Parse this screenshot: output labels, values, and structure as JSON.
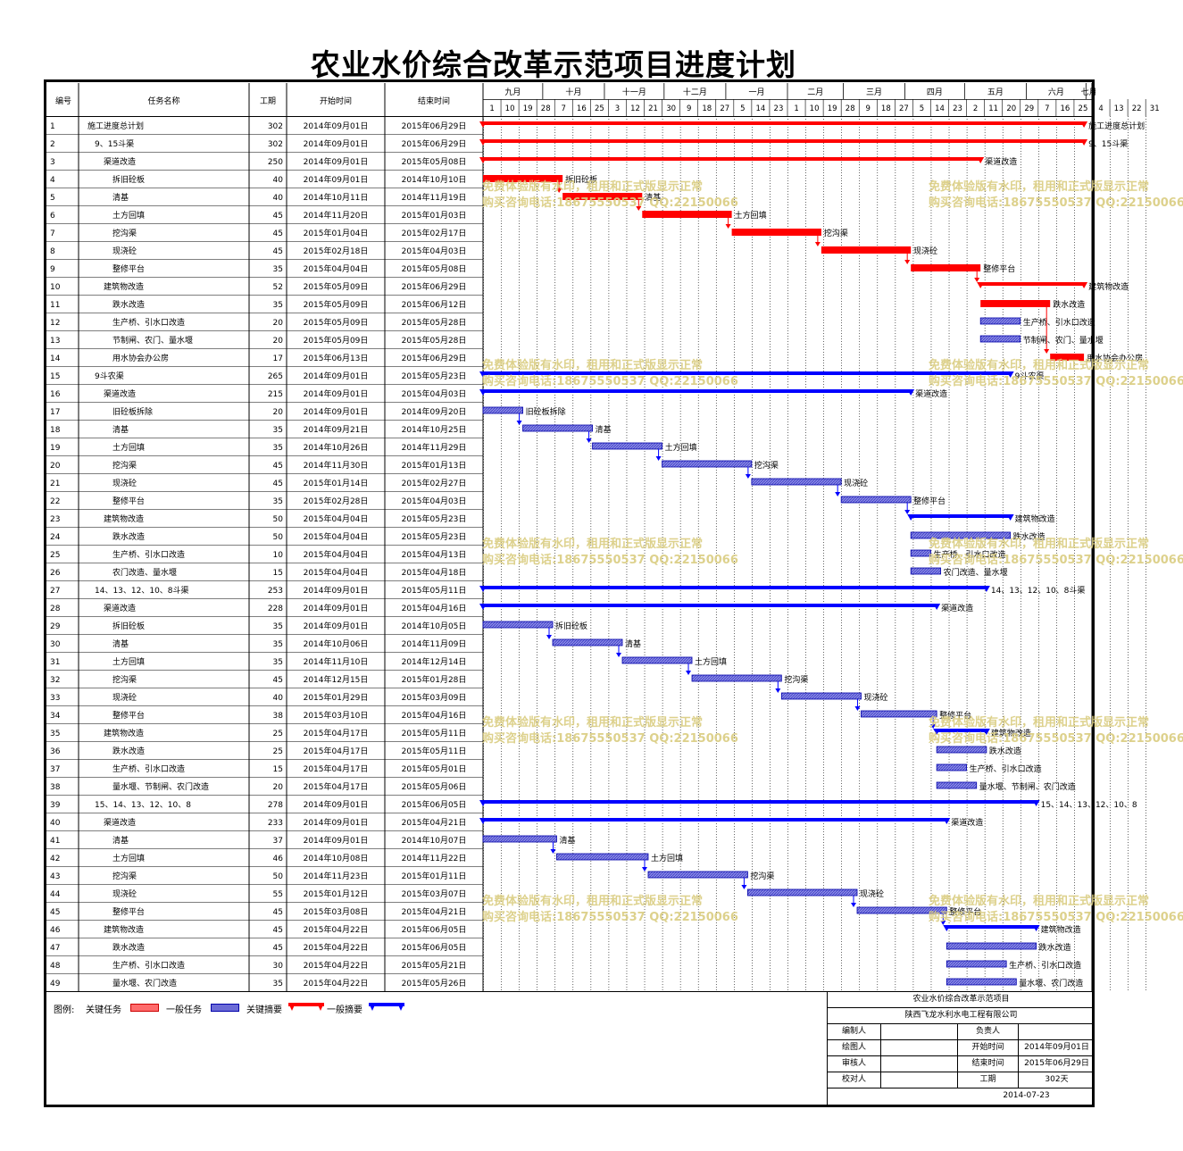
{
  "title": "农业水价综合改革示范项目进度计划",
  "headers": {
    "id": "编号",
    "name": "任务名称",
    "duration": "工期",
    "start": "开始时间",
    "end": "结束时间"
  },
  "timescale": {
    "months": [
      "九月",
      "十月",
      "十一月",
      "十二月",
      "一月",
      "二月",
      "三月",
      "四月",
      "五月",
      "六月",
      "七月"
    ],
    "days": [
      "1",
      "10",
      "19",
      "28",
      "7",
      "16",
      "25",
      "3",
      "12",
      "21",
      "30",
      "9",
      "18",
      "27",
      "5",
      "14",
      "23",
      "1",
      "10",
      "19",
      "28",
      "9",
      "18",
      "27",
      "5",
      "14",
      "23",
      "2",
      "11",
      "20",
      "29",
      "7",
      "16",
      "25",
      "4",
      "13",
      "22",
      "31"
    ],
    "range_start": "2014-09-01",
    "range_end": "2015-07-04"
  },
  "chart_data": {
    "type": "gantt",
    "title": "农业水价综合改革示范项目进度计划",
    "tasks": [
      {
        "id": 1,
        "name": "施工进度总计划",
        "level": 0,
        "duration": 302,
        "start_text": "2014年09月01日",
        "end_text": "2015年06月29日",
        "start": "2014-09-01",
        "end": "2015-06-29",
        "kind": "critical_summary",
        "label": "施工进度总计划"
      },
      {
        "id": 2,
        "name": "9、15斗渠",
        "level": 1,
        "duration": 302,
        "start_text": "2014年09月01日",
        "end_text": "2015年06月29日",
        "start": "2014-09-01",
        "end": "2015-06-29",
        "kind": "critical_summary",
        "label": "9、15斗渠"
      },
      {
        "id": 3,
        "name": "渠道改造",
        "level": 2,
        "duration": 250,
        "start_text": "2014年09月01日",
        "end_text": "2015年05月08日",
        "start": "2014-09-01",
        "end": "2015-05-08",
        "kind": "critical_summary",
        "label": "渠道改造"
      },
      {
        "id": 4,
        "name": "拆旧砼板",
        "level": 3,
        "duration": 40,
        "start_text": "2014年09月01日",
        "end_text": "2014年10月10日",
        "start": "2014-09-01",
        "end": "2014-10-10",
        "kind": "critical",
        "label": "拆旧砼板"
      },
      {
        "id": 5,
        "name": "清基",
        "level": 3,
        "duration": 40,
        "start_text": "2014年10月11日",
        "end_text": "2014年11月19日",
        "start": "2014-10-11",
        "end": "2014-11-19",
        "kind": "critical",
        "label": "清基"
      },
      {
        "id": 6,
        "name": "土方回填",
        "level": 3,
        "duration": 45,
        "start_text": "2014年11月20日",
        "end_text": "2015年01月03日",
        "start": "2014-11-20",
        "end": "2015-01-03",
        "kind": "critical",
        "label": "土方回填"
      },
      {
        "id": 7,
        "name": "挖沟渠",
        "level": 3,
        "duration": 45,
        "start_text": "2015年01月04日",
        "end_text": "2015年02月17日",
        "start": "2015-01-04",
        "end": "2015-02-17",
        "kind": "critical",
        "label": "挖沟渠"
      },
      {
        "id": 8,
        "name": "现浇砼",
        "level": 3,
        "duration": 45,
        "start_text": "2015年02月18日",
        "end_text": "2015年04月03日",
        "start": "2015-02-18",
        "end": "2015-04-03",
        "kind": "critical",
        "label": "现浇砼"
      },
      {
        "id": 9,
        "name": "整修平台",
        "level": 3,
        "duration": 35,
        "start_text": "2015年04月04日",
        "end_text": "2015年05月08日",
        "start": "2015-04-04",
        "end": "2015-05-08",
        "kind": "critical",
        "label": "整修平台"
      },
      {
        "id": 10,
        "name": "建筑物改造",
        "level": 2,
        "duration": 52,
        "start_text": "2015年05月09日",
        "end_text": "2015年06月29日",
        "start": "2015-05-09",
        "end": "2015-06-29",
        "kind": "critical_summary",
        "label": "建筑物改造"
      },
      {
        "id": 11,
        "name": "跌水改造",
        "level": 3,
        "duration": 35,
        "start_text": "2015年05月09日",
        "end_text": "2015年06月12日",
        "start": "2015-05-09",
        "end": "2015-06-12",
        "kind": "critical",
        "label": "跌水改造"
      },
      {
        "id": 12,
        "name": "生产桥、引水口改造",
        "level": 3,
        "duration": 20,
        "start_text": "2015年05月09日",
        "end_text": "2015年05月28日",
        "start": "2015-05-09",
        "end": "2015-05-28",
        "kind": "normal",
        "label": "生产桥、引水口改造"
      },
      {
        "id": 13,
        "name": "节制闸、农门、量水堰",
        "level": 3,
        "duration": 20,
        "start_text": "2015年05月09日",
        "end_text": "2015年05月28日",
        "start": "2015-05-09",
        "end": "2015-05-28",
        "kind": "normal",
        "label": "节制闸、农门、量水堰"
      },
      {
        "id": 14,
        "name": "用水协会办公房",
        "level": 3,
        "duration": 17,
        "start_text": "2015年06月13日",
        "end_text": "2015年06月29日",
        "start": "2015-06-13",
        "end": "2015-06-29",
        "kind": "critical",
        "label": "用水协会办公房"
      },
      {
        "id": 15,
        "name": "9斗农渠",
        "level": 1,
        "duration": 265,
        "start_text": "2014年09月01日",
        "end_text": "2015年05月23日",
        "start": "2014-09-01",
        "end": "2015-05-23",
        "kind": "summary",
        "label": "9斗农渠"
      },
      {
        "id": 16,
        "name": "渠道改造",
        "level": 2,
        "duration": 215,
        "start_text": "2014年09月01日",
        "end_text": "2015年04月03日",
        "start": "2014-09-01",
        "end": "2015-04-03",
        "kind": "summary",
        "label": "渠道改造"
      },
      {
        "id": 17,
        "name": "旧砼板拆除",
        "level": 3,
        "duration": 20,
        "start_text": "2014年09月01日",
        "end_text": "2014年09月20日",
        "start": "2014-09-01",
        "end": "2014-09-20",
        "kind": "normal",
        "label": "旧砼板拆除"
      },
      {
        "id": 18,
        "name": "清基",
        "level": 3,
        "duration": 35,
        "start_text": "2014年09月21日",
        "end_text": "2014年10月25日",
        "start": "2014-09-21",
        "end": "2014-10-25",
        "kind": "normal",
        "label": "清基"
      },
      {
        "id": 19,
        "name": "土方回填",
        "level": 3,
        "duration": 35,
        "start_text": "2014年10月26日",
        "end_text": "2014年11月29日",
        "start": "2014-10-26",
        "end": "2014-11-29",
        "kind": "normal",
        "label": "土方回填"
      },
      {
        "id": 20,
        "name": "挖沟渠",
        "level": 3,
        "duration": 45,
        "start_text": "2014年11月30日",
        "end_text": "2015年01月13日",
        "start": "2014-11-30",
        "end": "2015-01-13",
        "kind": "normal",
        "label": "挖沟渠"
      },
      {
        "id": 21,
        "name": "现浇砼",
        "level": 3,
        "duration": 45,
        "start_text": "2015年01月14日",
        "end_text": "2015年02月27日",
        "start": "2015-01-14",
        "end": "2015-02-27",
        "kind": "normal",
        "label": "现浇砼"
      },
      {
        "id": 22,
        "name": "整修平台",
        "level": 3,
        "duration": 35,
        "start_text": "2015年02月28日",
        "end_text": "2015年04月03日",
        "start": "2015-02-28",
        "end": "2015-04-03",
        "kind": "normal",
        "label": "整修平台"
      },
      {
        "id": 23,
        "name": "建筑物改造",
        "level": 2,
        "duration": 50,
        "start_text": "2015年04月04日",
        "end_text": "2015年05月23日",
        "start": "2015-04-04",
        "end": "2015-05-23",
        "kind": "summary",
        "label": "建筑物改造"
      },
      {
        "id": 24,
        "name": "跌水改造",
        "level": 3,
        "duration": 50,
        "start_text": "2015年04月04日",
        "end_text": "2015年05月23日",
        "start": "2015-04-04",
        "end": "2015-05-23",
        "kind": "normal",
        "label": "跌水改造"
      },
      {
        "id": 25,
        "name": "生产桥、引水口改造",
        "level": 3,
        "duration": 10,
        "start_text": "2015年04月04日",
        "end_text": "2015年04月13日",
        "start": "2015-04-04",
        "end": "2015-04-13",
        "kind": "normal",
        "label": "生产桥、引水口改造"
      },
      {
        "id": 26,
        "name": "农门改造、量水堰",
        "level": 3,
        "duration": 15,
        "start_text": "2015年04月04日",
        "end_text": "2015年04月18日",
        "start": "2015-04-04",
        "end": "2015-04-18",
        "kind": "normal",
        "label": "农门改造、量水堰"
      },
      {
        "id": 27,
        "name": "14、13、12、10、8斗渠",
        "level": 1,
        "duration": 253,
        "start_text": "2014年09月01日",
        "end_text": "2015年05月11日",
        "start": "2014-09-01",
        "end": "2015-05-11",
        "kind": "summary",
        "label": "14、13、12、10、8斗渠"
      },
      {
        "id": 28,
        "name": "渠道改造",
        "level": 2,
        "duration": 228,
        "start_text": "2014年09月01日",
        "end_text": "2015年04月16日",
        "start": "2014-09-01",
        "end": "2015-04-16",
        "kind": "summary",
        "label": "渠道改造"
      },
      {
        "id": 29,
        "name": "拆旧砼板",
        "level": 3,
        "duration": 35,
        "start_text": "2014年09月01日",
        "end_text": "2014年10月05日",
        "start": "2014-09-01",
        "end": "2014-10-05",
        "kind": "normal",
        "label": "拆旧砼板"
      },
      {
        "id": 30,
        "name": "清基",
        "level": 3,
        "duration": 35,
        "start_text": "2014年10月06日",
        "end_text": "2014年11月09日",
        "start": "2014-10-06",
        "end": "2014-11-09",
        "kind": "normal",
        "label": "清基"
      },
      {
        "id": 31,
        "name": "土方回填",
        "level": 3,
        "duration": 35,
        "start_text": "2014年11月10日",
        "end_text": "2014年12月14日",
        "start": "2014-11-10",
        "end": "2014-12-14",
        "kind": "normal",
        "label": "土方回填"
      },
      {
        "id": 32,
        "name": "挖沟渠",
        "level": 3,
        "duration": 45,
        "start_text": "2014年12月15日",
        "end_text": "2015年01月28日",
        "start": "2014-12-15",
        "end": "2015-01-28",
        "kind": "normal",
        "label": "挖沟渠"
      },
      {
        "id": 33,
        "name": "现浇砼",
        "level": 3,
        "duration": 40,
        "start_text": "2015年01月29日",
        "end_text": "2015年03月09日",
        "start": "2015-01-29",
        "end": "2015-03-09",
        "kind": "normal",
        "label": "现浇砼"
      },
      {
        "id": 34,
        "name": "整修平台",
        "level": 3,
        "duration": 38,
        "start_text": "2015年03月10日",
        "end_text": "2015年04月16日",
        "start": "2015-03-10",
        "end": "2015-04-16",
        "kind": "normal",
        "label": "整修平台"
      },
      {
        "id": 35,
        "name": "建筑物改造",
        "level": 2,
        "duration": 25,
        "start_text": "2015年04月17日",
        "end_text": "2015年05月11日",
        "start": "2015-04-17",
        "end": "2015-05-11",
        "kind": "summary",
        "label": "建筑物改造"
      },
      {
        "id": 36,
        "name": "跌水改造",
        "level": 3,
        "duration": 25,
        "start_text": "2015年04月17日",
        "end_text": "2015年05月11日",
        "start": "2015-04-17",
        "end": "2015-05-11",
        "kind": "normal",
        "label": "跌水改造"
      },
      {
        "id": 37,
        "name": "生产桥、引水口改造",
        "level": 3,
        "duration": 15,
        "start_text": "2015年04月17日",
        "end_text": "2015年05月01日",
        "start": "2015-04-17",
        "end": "2015-05-01",
        "kind": "normal",
        "label": "生产桥、引水口改造"
      },
      {
        "id": 38,
        "name": "量水堰、节制闸、农门改造",
        "level": 3,
        "duration": 20,
        "start_text": "2015年04月17日",
        "end_text": "2015年05月06日",
        "start": "2015-04-17",
        "end": "2015-05-06",
        "kind": "normal",
        "label": "量水堰、节制闸、农门改造"
      },
      {
        "id": 39,
        "name": "15、14、13、12、10、8",
        "level": 1,
        "duration": 278,
        "start_text": "2014年09月01日",
        "end_text": "2015年06月05日",
        "start": "2014-09-01",
        "end": "2015-06-05",
        "kind": "summary",
        "label": "15、14、13、12、10、8"
      },
      {
        "id": 40,
        "name": "渠道改造",
        "level": 2,
        "duration": 233,
        "start_text": "2014年09月01日",
        "end_text": "2015年04月21日",
        "start": "2014-09-01",
        "end": "2015-04-21",
        "kind": "summary",
        "label": "渠道改造"
      },
      {
        "id": 41,
        "name": "清基",
        "level": 3,
        "duration": 37,
        "start_text": "2014年09月01日",
        "end_text": "2014年10月07日",
        "start": "2014-09-01",
        "end": "2014-10-07",
        "kind": "normal",
        "label": "清基"
      },
      {
        "id": 42,
        "name": "土方回填",
        "level": 3,
        "duration": 46,
        "start_text": "2014年10月08日",
        "end_text": "2014年11月22日",
        "start": "2014-10-08",
        "end": "2014-11-22",
        "kind": "normal",
        "label": "土方回填"
      },
      {
        "id": 43,
        "name": "挖沟渠",
        "level": 3,
        "duration": 50,
        "start_text": "2014年11月23日",
        "end_text": "2015年01月11日",
        "start": "2014-11-23",
        "end": "2015-01-11",
        "kind": "normal",
        "label": "挖沟渠"
      },
      {
        "id": 44,
        "name": "现浇砼",
        "level": 3,
        "duration": 55,
        "start_text": "2015年01月12日",
        "end_text": "2015年03月07日",
        "start": "2015-01-12",
        "end": "2015-03-07",
        "kind": "normal",
        "label": "现浇砼"
      },
      {
        "id": 45,
        "name": "整修平台",
        "level": 3,
        "duration": 45,
        "start_text": "2015年03月08日",
        "end_text": "2015年04月21日",
        "start": "2015-03-08",
        "end": "2015-04-21",
        "kind": "normal",
        "label": "整修平台"
      },
      {
        "id": 46,
        "name": "建筑物改造",
        "level": 2,
        "duration": 45,
        "start_text": "2015年04月22日",
        "end_text": "2015年06月05日",
        "start": "2015-04-22",
        "end": "2015-06-05",
        "kind": "summary",
        "label": "建筑物改造"
      },
      {
        "id": 47,
        "name": "跌水改造",
        "level": 3,
        "duration": 45,
        "start_text": "2015年04月22日",
        "end_text": "2015年06月05日",
        "start": "2015-04-22",
        "end": "2015-06-05",
        "kind": "normal",
        "label": "跌水改造"
      },
      {
        "id": 48,
        "name": "生产桥、引水口改造",
        "level": 3,
        "duration": 30,
        "start_text": "2015年04月22日",
        "end_text": "2015年05月21日",
        "start": "2015-04-22",
        "end": "2015-05-21",
        "kind": "normal",
        "label": "生产桥、引水口改造"
      },
      {
        "id": 49,
        "name": "量水堰、农门改造",
        "level": 3,
        "duration": 35,
        "start_text": "2015年04月22日",
        "end_text": "2015年05月26日",
        "start": "2015-04-22",
        "end": "2015-05-26",
        "kind": "normal",
        "label": "量水堰、农门改造"
      }
    ],
    "links": [
      [
        4,
        5
      ],
      [
        5,
        6
      ],
      [
        6,
        7
      ],
      [
        7,
        8
      ],
      [
        8,
        9
      ],
      [
        9,
        10
      ],
      [
        11,
        14
      ],
      [
        17,
        18
      ],
      [
        18,
        19
      ],
      [
        19,
        20
      ],
      [
        20,
        21
      ],
      [
        21,
        22
      ],
      [
        22,
        23
      ],
      [
        29,
        30
      ],
      [
        30,
        31
      ],
      [
        31,
        32
      ],
      [
        32,
        33
      ],
      [
        33,
        34
      ],
      [
        34,
        35
      ],
      [
        41,
        42
      ],
      [
        42,
        43
      ],
      [
        43,
        44
      ],
      [
        44,
        45
      ],
      [
        45,
        46
      ]
    ]
  },
  "watermark": {
    "line1": "免费体验版有水印，租用和正式版显示正常",
    "line2": "购买咨询电话:18675550537 QQ:22150066"
  },
  "colors": {
    "critical": "#ff0000",
    "normal_fill": "#6b6bd6",
    "normal_border": "#0000aa",
    "summary": "#0000ff",
    "watermark": "#d9cc7f"
  },
  "legend": {
    "title": "图例:",
    "critical_task": "关键任务",
    "normal_task": "一般任务",
    "critical_summary": "关键摘要",
    "normal_summary": "一般摘要"
  },
  "title_block": {
    "project": "农业水价综合改革示范项目",
    "company": "陕西飞龙水利水电工程有限公司",
    "prepared_by_label": "编制人",
    "prepared_by": "",
    "responsible_label": "负责人",
    "responsible": "",
    "drawn_by_label": "绘图人",
    "drawn_by": "",
    "start_label": "开始时间",
    "start_value": "2014年09月01日",
    "reviewed_by_label": "审核人",
    "reviewed_by": "",
    "end_label": "结束时间",
    "end_value": "2015年06月29日",
    "checked_by_label": "校对人",
    "checked_by": "",
    "duration_label": "工期",
    "duration_value": "302天",
    "date": "2014-07-23"
  }
}
